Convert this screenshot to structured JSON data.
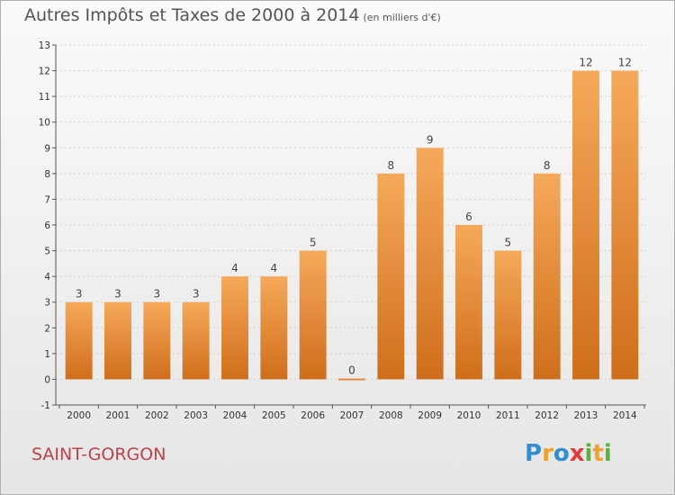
{
  "header": {
    "title": "Autres Impôts et Taxes de 2000 à 2014",
    "unit": "(en milliers d'€)"
  },
  "footer": {
    "commune": "SAINT-GORGON",
    "logo_letters": [
      "P",
      "r",
      "o",
      "x",
      "i",
      "t",
      "i"
    ],
    "logo_colors": [
      "#2f8fd1",
      "#f2a12a",
      "#2f8fd1",
      "#e23b3b",
      "#5ab43c",
      "#f2a12a",
      "#5ab43c"
    ]
  },
  "colors": {
    "bar_light": "#f6a95a",
    "bar_dark": "#cf6e1a",
    "grid": "#cfcfcf"
  },
  "chart_data": {
    "type": "bar",
    "title": "Autres Impôts et Taxes de 2000 à 2014",
    "subtitle": "(en milliers d'€)",
    "categories": [
      "2000",
      "2001",
      "2002",
      "2003",
      "2004",
      "2005",
      "2006",
      "2007",
      "2008",
      "2009",
      "2010",
      "2011",
      "2012",
      "2013",
      "2014"
    ],
    "values": [
      3,
      3,
      3,
      3,
      4,
      4,
      5,
      0,
      8,
      9,
      6,
      5,
      8,
      12,
      12
    ],
    "ylim": [
      -1,
      13
    ],
    "yticks": [
      "-1",
      "0",
      "1",
      "2",
      "3",
      "4",
      "5",
      "6",
      "7",
      "8",
      "9",
      "10",
      "11",
      "12",
      "13"
    ],
    "grid": true,
    "legend": "none"
  }
}
